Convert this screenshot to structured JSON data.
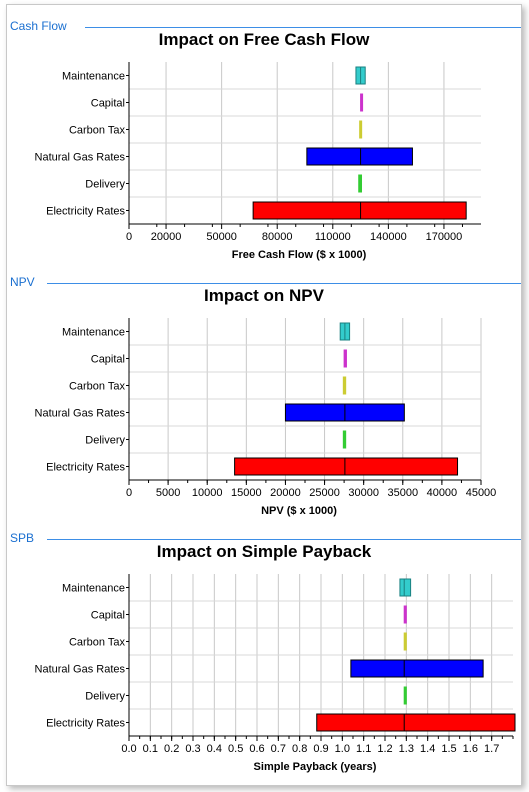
{
  "sections": [
    {
      "header": "Cash Flow",
      "chart_data": {
        "type": "bar",
        "title": "Impact on Free Cash Flow",
        "xlabel": "Free Cash Flow ($ x 1000)",
        "ylabel": "",
        "categories": [
          "Maintenance",
          "Capital",
          "Carbon Tax",
          "Natural Gas Rates",
          "Delivery",
          "Electricity Rates"
        ],
        "low": [
          122500,
          125000,
          124500,
          96000,
          124000,
          67000
        ],
        "high": [
          127500,
          126000,
          125500,
          153000,
          125500,
          182000
        ],
        "base": 125000,
        "xlim": [
          0,
          190000
        ],
        "xticks": [
          0,
          20000,
          50000,
          80000,
          110000,
          140000,
          170000
        ],
        "xtick_labels": [
          "0",
          "20000",
          "50000",
          "80000",
          "110000",
          "140000",
          "170000"
        ],
        "grid": true,
        "colors": [
          "#33cccc",
          "#cc33cc",
          "#cccc33",
          "#0000ff",
          "#33cc33",
          "#ff0000"
        ]
      }
    },
    {
      "header": "NPV",
      "chart_data": {
        "type": "bar",
        "title": "Impact on NPV",
        "xlabel": "NPV ($ x 1000)",
        "ylabel": "",
        "categories": [
          "Maintenance",
          "Capital",
          "Carbon Tax",
          "Natural Gas Rates",
          "Delivery",
          "Electricity Rates"
        ],
        "low": [
          27000,
          27500,
          27400,
          20000,
          27400,
          13500
        ],
        "high": [
          28200,
          27800,
          27700,
          35200,
          27700,
          42000
        ],
        "base": 27600,
        "xlim": [
          0,
          45000
        ],
        "xticks": [
          0,
          5000,
          10000,
          15000,
          20000,
          25000,
          30000,
          35000,
          40000,
          45000
        ],
        "xtick_labels": [
          "0",
          "5000",
          "10000",
          "15000",
          "20000",
          "25000",
          "30000",
          "35000",
          "40000",
          "45000"
        ],
        "grid": true,
        "colors": [
          "#33cccc",
          "#cc33cc",
          "#cccc33",
          "#0000ff",
          "#33cc33",
          "#ff0000"
        ]
      }
    },
    {
      "header": "SPB",
      "chart_data": {
        "type": "bar",
        "title": "Impact on Simple Payback",
        "xlabel": "Simple Payback (years)",
        "ylabel": "",
        "categories": [
          "Maintenance",
          "Capital",
          "Carbon Tax",
          "Natural Gas Rates",
          "Delivery",
          "Electricity Rates"
        ],
        "low": [
          1.27,
          1.29,
          1.29,
          1.04,
          1.29,
          0.88
        ],
        "high": [
          1.32,
          1.3,
          1.3,
          1.66,
          1.3,
          1.9
        ],
        "base": 1.29,
        "xlim": [
          0,
          1.8
        ],
        "xticks": [
          0,
          0.1,
          0.2,
          0.3,
          0.4,
          0.5,
          0.6,
          0.7,
          0.8,
          0.9,
          1.0,
          1.1,
          1.2,
          1.3,
          1.4,
          1.5,
          1.6,
          1.7
        ],
        "xtick_labels": [
          "0.0",
          "0.1",
          "0.2",
          "0.3",
          "0.4",
          "0.5",
          "0.6",
          "0.7",
          "0.8",
          "0.9",
          "1.0",
          "1.1",
          "1.2",
          "1.3",
          "1.4",
          "1.5",
          "1.6",
          "1.7"
        ],
        "grid": true,
        "colors": [
          "#33cccc",
          "#cc33cc",
          "#cccc33",
          "#0000ff",
          "#33cc33",
          "#ff0000"
        ]
      }
    }
  ]
}
